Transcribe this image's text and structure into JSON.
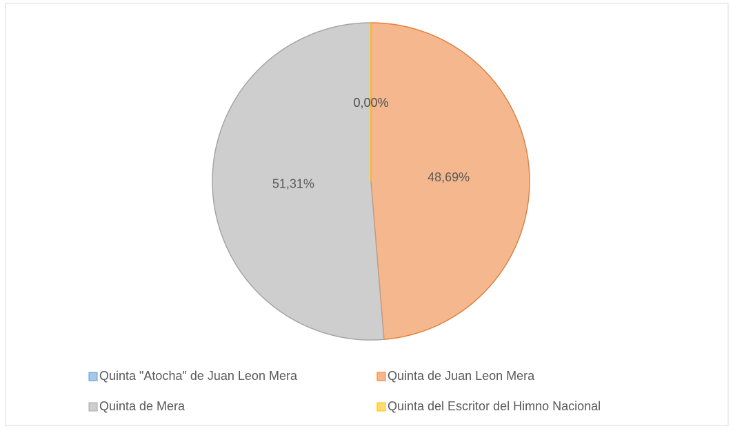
{
  "chart_data": {
    "type": "pie",
    "categories": [
      "Quinta \"Atocha\" de Juan Leon Mera",
      "Quinta de Juan Leon Mera",
      "Quinta de Mera",
      "Quinta del Escritor del Himno Nacional"
    ],
    "values": [
      0,
      48.69,
      51.31,
      0
    ],
    "value_labels": [
      "0,00%",
      "48,69%",
      "51,31%",
      "0,00%"
    ],
    "colors": [
      "#5b9bd5",
      "#ed7d31",
      "#a5a5a5",
      "#ffc000"
    ],
    "legend": "bottom"
  }
}
